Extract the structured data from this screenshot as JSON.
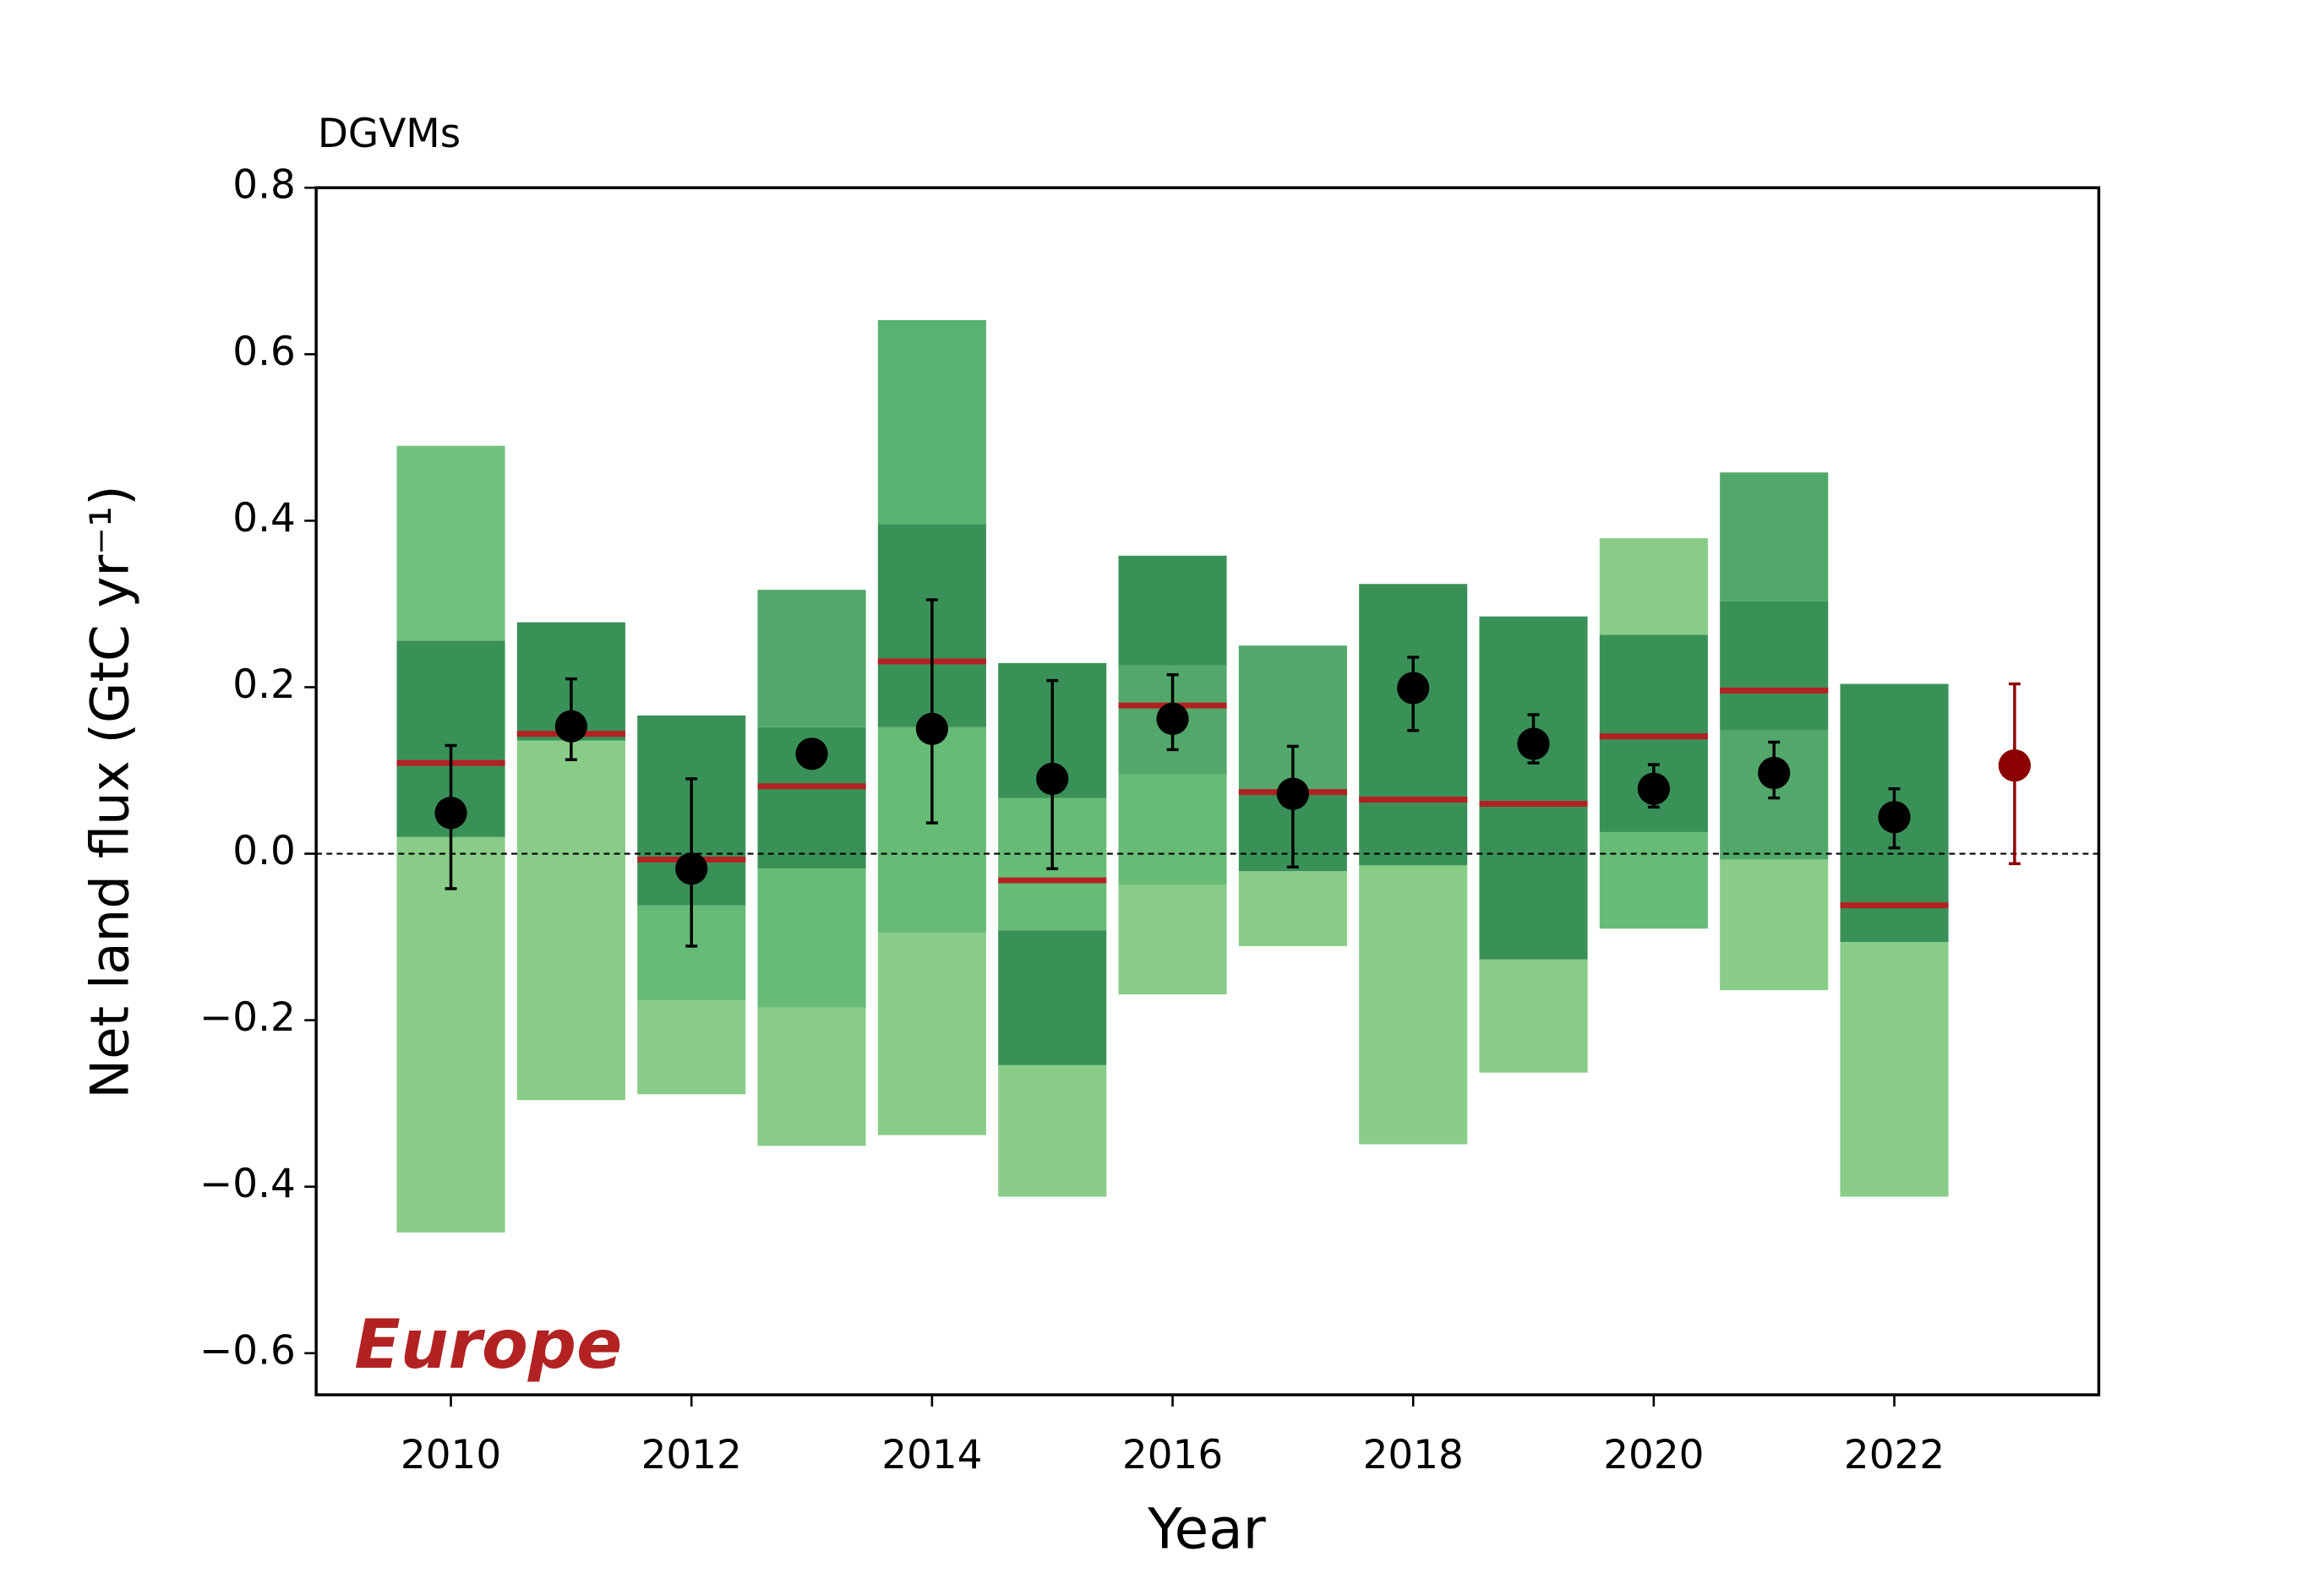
{
  "chart_data": {
    "type": "range-box",
    "title": "DGVMs",
    "xlabel": "Year",
    "ylabel": "Net land flux (GtC yr⁻¹)",
    "annotation": "Europe",
    "annotation_color": "#b22222",
    "x": [
      2010,
      2011,
      2012,
      2013,
      2014,
      2015,
      2016,
      2017,
      2018,
      2019,
      2020,
      2021,
      2022
    ],
    "segments": [
      [
        {
          "low": -0.455,
          "high": 0.02,
          "color": "#88cc88"
        },
        {
          "low": 0.02,
          "high": 0.256,
          "color": "#3a9158"
        },
        {
          "low": 0.256,
          "high": 0.49,
          "color": "#73c17e"
        }
      ],
      [
        {
          "low": -0.296,
          "high": 0.136,
          "color": "#88cc88"
        },
        {
          "low": 0.136,
          "high": 0.278,
          "color": "#3a9158"
        }
      ],
      [
        {
          "low": -0.289,
          "high": -0.176,
          "color": "#88cc88"
        },
        {
          "low": -0.176,
          "high": -0.062,
          "color": "#66bb77"
        },
        {
          "low": -0.062,
          "high": 0.166,
          "color": "#3a9158"
        }
      ],
      [
        {
          "low": -0.351,
          "high": -0.185,
          "color": "#88cc88"
        },
        {
          "low": -0.185,
          "high": -0.018,
          "color": "#66bb77"
        },
        {
          "low": -0.018,
          "high": 0.152,
          "color": "#3a9158"
        },
        {
          "low": 0.152,
          "high": 0.317,
          "color": "#52a86a"
        }
      ],
      [
        {
          "low": -0.338,
          "high": -0.095,
          "color": "#88cc88"
        },
        {
          "low": -0.095,
          "high": 0.152,
          "color": "#66bb77"
        },
        {
          "low": 0.152,
          "high": 0.396,
          "color": "#3a9158"
        },
        {
          "low": 0.396,
          "high": 0.641,
          "color": "#58b270"
        }
      ],
      [
        {
          "low": -0.412,
          "high": -0.254,
          "color": "#88cc88"
        },
        {
          "low": -0.254,
          "high": -0.092,
          "color": "#3a9158"
        },
        {
          "low": -0.092,
          "high": 0.067,
          "color": "#66bb77"
        },
        {
          "low": 0.067,
          "high": 0.229,
          "color": "#3a9158"
        }
      ],
      [
        {
          "low": -0.169,
          "high": -0.037,
          "color": "#88cc88"
        },
        {
          "low": -0.037,
          "high": 0.095,
          "color": "#66bb77"
        },
        {
          "low": 0.095,
          "high": 0.226,
          "color": "#52a86a"
        },
        {
          "low": 0.226,
          "high": 0.358,
          "color": "#3a9158"
        }
      ],
      [
        {
          "low": -0.111,
          "high": -0.021,
          "color": "#88cc88"
        },
        {
          "low": -0.021,
          "high": 0.076,
          "color": "#3a9158"
        },
        {
          "low": 0.076,
          "high": 0.25,
          "color": "#52a86a"
        }
      ],
      [
        {
          "low": -0.349,
          "high": -0.014,
          "color": "#88cc88"
        },
        {
          "low": -0.014,
          "high": 0.324,
          "color": "#3a9158"
        }
      ],
      [
        {
          "low": -0.263,
          "high": -0.127,
          "color": "#88cc88"
        },
        {
          "low": -0.127,
          "high": 0.285,
          "color": "#3a9158"
        }
      ],
      [
        {
          "low": -0.09,
          "high": 0.026,
          "color": "#66bb77"
        },
        {
          "low": 0.026,
          "high": 0.263,
          "color": "#3a9158"
        },
        {
          "low": 0.263,
          "high": 0.379,
          "color": "#88cc88"
        }
      ],
      [
        {
          "low": -0.164,
          "high": -0.007,
          "color": "#88cc88"
        },
        {
          "low": -0.007,
          "high": 0.148,
          "color": "#52a86a"
        },
        {
          "low": 0.148,
          "high": 0.303,
          "color": "#3a9158"
        },
        {
          "low": 0.303,
          "high": 0.458,
          "color": "#52a86a"
        }
      ],
      [
        {
          "low": -0.412,
          "high": -0.106,
          "color": "#88cc88"
        },
        {
          "low": -0.106,
          "high": 0.204,
          "color": "#3a9158"
        }
      ]
    ],
    "medians": [
      0.109,
      0.144,
      -0.007,
      0.081,
      0.231,
      -0.032,
      0.178,
      0.074,
      0.065,
      0.06,
      0.141,
      0.196,
      -0.062
    ],
    "median_color": "#b22222",
    "means": [
      0.049,
      0.153,
      -0.018,
      0.12,
      0.15,
      0.09,
      0.162,
      0.072,
      0.199,
      0.132,
      0.078,
      0.097,
      0.044
    ],
    "mean_low": [
      -0.042,
      0.113,
      -0.111,
      null,
      0.037,
      -0.018,
      0.125,
      -0.016,
      0.148,
      0.109,
      0.056,
      0.067,
      0.007
    ],
    "mean_high": [
      0.13,
      0.21,
      0.09,
      null,
      0.305,
      0.208,
      0.215,
      0.129,
      0.236,
      0.167,
      0.107,
      0.134,
      0.078
    ],
    "mean_color": "#000000",
    "extra_point": {
      "x": 2023,
      "value": 0.106,
      "low": -0.012,
      "high": 0.204,
      "color": "#8b0000"
    },
    "hline": 0,
    "xlim": [
      2008.88,
      2023.7
    ],
    "ylim": [
      -0.65,
      0.8
    ],
    "xticks": [
      2010,
      2012,
      2014,
      2016,
      2018,
      2020,
      2022
    ],
    "yticks": [
      {
        "value": -0.6,
        "label": "−0.6"
      },
      {
        "value": -0.4,
        "label": "−0.4"
      },
      {
        "value": -0.2,
        "label": "−0.2"
      },
      {
        "value": 0,
        "label": "0.0"
      },
      {
        "value": 0.2,
        "label": "0.2"
      },
      {
        "value": 0.4,
        "label": "0.4"
      },
      {
        "value": 0.6,
        "label": "0.6"
      },
      {
        "value": 0.8,
        "label": "0.8"
      }
    ]
  }
}
